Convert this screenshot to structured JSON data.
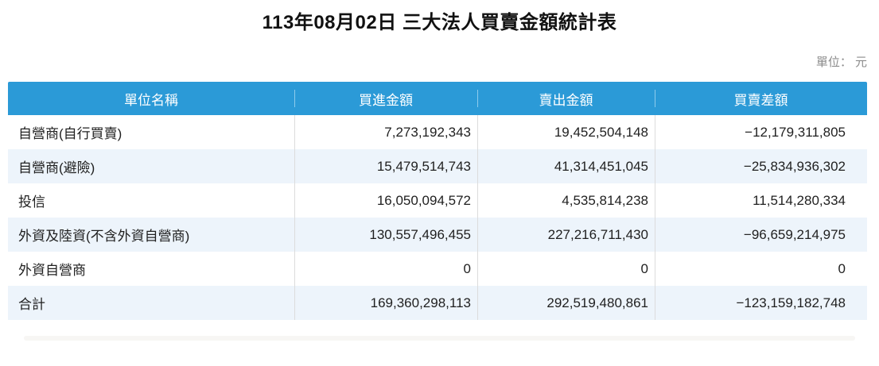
{
  "page": {
    "title": "113年08月02日 三大法人買賣金額統計表",
    "unit_label": "單位： 元"
  },
  "table": {
    "columns": {
      "name": "單位名稱",
      "buy": "買進金額",
      "sell": "賣出金額",
      "diff": "買賣差額"
    },
    "rows": [
      {
        "name": "自營商(自行買賣)",
        "buy": "7,273,192,343",
        "sell": "19,452,504,148",
        "diff": "−12,179,311,805"
      },
      {
        "name": "自營商(避險)",
        "buy": "15,479,514,743",
        "sell": "41,314,451,045",
        "diff": "−25,834,936,302"
      },
      {
        "name": "投信",
        "buy": "16,050,094,572",
        "sell": "4,535,814,238",
        "diff": "11,514,280,334"
      },
      {
        "name": "外資及陸資(不含外資自營商)",
        "buy": "130,557,496,455",
        "sell": "227,216,711,430",
        "diff": "−96,659,214,975"
      },
      {
        "name": "外資自營商",
        "buy": "0",
        "sell": "0",
        "diff": "0"
      },
      {
        "name": "合計",
        "buy": "169,360,298,113",
        "sell": "292,519,480,861",
        "diff": "−123,159,182,748"
      }
    ]
  },
  "colors": {
    "header_bg": "#2b9ad7",
    "header_text": "#ffffff",
    "header_divider": "#8ecbec",
    "stripe_bg": "#edf4fb",
    "row_bg": "#ffffff",
    "body_text": "#1f1f1f",
    "cell_border": "#dcdcdc",
    "unit_text": "#8b8b8b"
  },
  "chart_data": {
    "type": "table",
    "title": "113年08月02日 三大法人買賣金額統計表",
    "unit": "元",
    "columns": [
      "單位名稱",
      "買進金額",
      "賣出金額",
      "買賣差額"
    ],
    "rows": [
      [
        "自營商(自行買賣)",
        7273192343,
        19452504148,
        -12179311805
      ],
      [
        "自營商(避險)",
        15479514743,
        41314451045,
        -25834936302
      ],
      [
        "投信",
        16050094572,
        4535814238,
        11514280334
      ],
      [
        "外資及陸資(不含外資自營商)",
        130557496455,
        227216711430,
        -96659214975
      ],
      [
        "外資自營商",
        0,
        0,
        0
      ],
      [
        "合計",
        169360298113,
        292519480861,
        -123159182748
      ]
    ]
  }
}
